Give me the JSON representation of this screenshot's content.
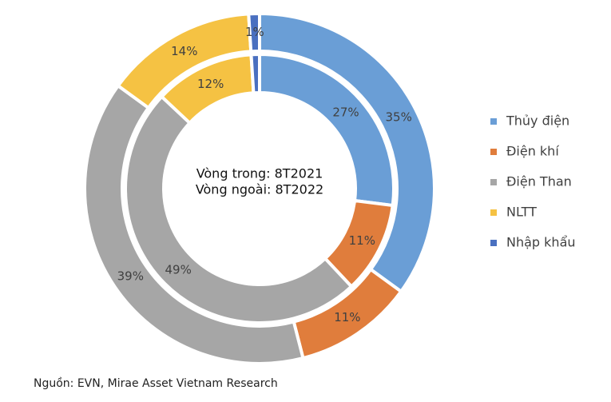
{
  "chart_data": {
    "type": "donut",
    "center_text": [
      "Vòng trong: 8T2021",
      "Vòng ngoài: 8T2022"
    ],
    "categories": [
      "Thủy điện",
      "Điện khí",
      "Điện Than",
      "NLTT",
      "Nhập khẩu"
    ],
    "colors": [
      "#6a9ed6",
      "#e07d3c",
      "#a6a6a6",
      "#f5c243",
      "#4a70c0"
    ],
    "rings": [
      {
        "values": [
          27,
          11,
          49,
          12,
          1
        ],
        "value_labels": [
          "27%",
          "11%",
          "49%",
          "12%",
          null
        ]
      },
      {
        "values": [
          35,
          11,
          39,
          14,
          1
        ],
        "value_labels": [
          "35%",
          "11%",
          "39%",
          "14%",
          "1%"
        ]
      }
    ],
    "legend": "right",
    "source": "Nguồn: EVN, Mirae Asset Vietnam Research"
  }
}
